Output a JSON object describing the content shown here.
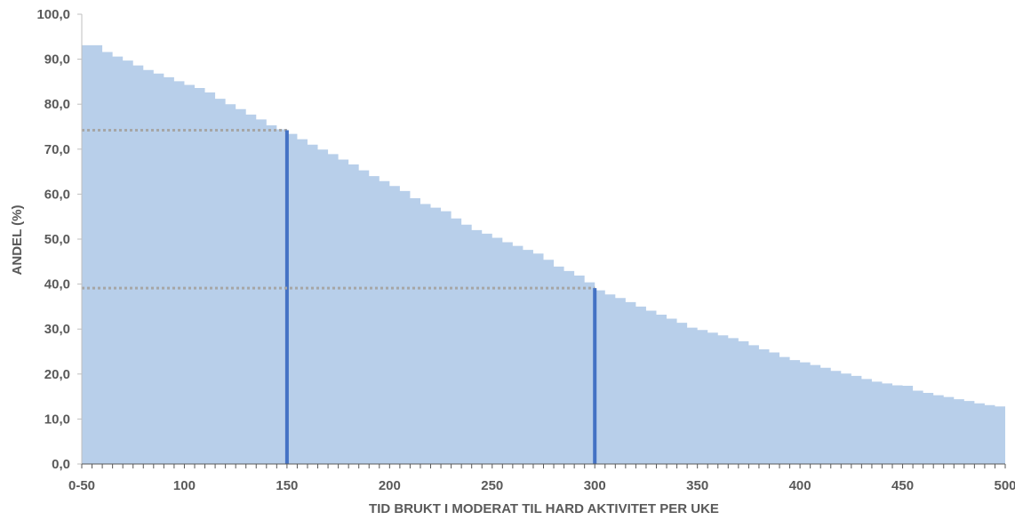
{
  "chart_data": {
    "type": "area",
    "title": "",
    "xlabel": "TID BRUKT I  MODERAT TIL HARD AKTIVITET PER UKE",
    "ylabel": "ANDEL (%)",
    "ylim": [
      0,
      100
    ],
    "yticks": [
      "0,0",
      "10,0",
      "20,0",
      "30,0",
      "40,0",
      "50,0",
      "60,0",
      "70,0",
      "80,0",
      "90,0",
      "100,0"
    ],
    "xlim": [
      50,
      500
    ],
    "xticks": [
      {
        "value": 50,
        "label": "0-50"
      },
      {
        "value": 100,
        "label": "100"
      },
      {
        "value": 150,
        "label": "150"
      },
      {
        "value": 200,
        "label": "200"
      },
      {
        "value": 250,
        "label": "250"
      },
      {
        "value": 300,
        "label": "300"
      },
      {
        "value": 350,
        "label": "350"
      },
      {
        "value": 400,
        "label": "400"
      },
      {
        "value": 450,
        "label": "450"
      },
      {
        "value": 500,
        "label": "500"
      }
    ],
    "fill_color": "#b8cfea",
    "marker_color": "#4472c4",
    "guide_color": "#a6a6a6",
    "grid": false,
    "steps": [
      [
        50,
        93.1
      ],
      [
        60,
        91.6
      ],
      [
        65,
        90.6
      ],
      [
        70,
        89.7
      ],
      [
        75,
        88.6
      ],
      [
        80,
        87.6
      ],
      [
        85,
        86.8
      ],
      [
        90,
        86.0
      ],
      [
        95,
        85.1
      ],
      [
        100,
        84.3
      ],
      [
        105,
        83.6
      ],
      [
        110,
        82.6
      ],
      [
        115,
        81.2
      ],
      [
        120,
        80.0
      ],
      [
        125,
        78.9
      ],
      [
        130,
        77.7
      ],
      [
        135,
        76.6
      ],
      [
        140,
        75.3
      ],
      [
        145,
        74.4
      ],
      [
        150,
        73.4
      ],
      [
        155,
        72.2
      ],
      [
        160,
        71.0
      ],
      [
        165,
        69.9
      ],
      [
        170,
        68.9
      ],
      [
        175,
        67.7
      ],
      [
        180,
        66.6
      ],
      [
        185,
        65.3
      ],
      [
        190,
        64.0
      ],
      [
        195,
        62.9
      ],
      [
        200,
        61.8
      ],
      [
        205,
        60.7
      ],
      [
        210,
        59.1
      ],
      [
        215,
        57.8
      ],
      [
        220,
        57.0
      ],
      [
        225,
        56.2
      ],
      [
        230,
        54.6
      ],
      [
        235,
        53.2
      ],
      [
        240,
        52.0
      ],
      [
        245,
        51.2
      ],
      [
        250,
        50.3
      ],
      [
        255,
        49.3
      ],
      [
        260,
        48.5
      ],
      [
        265,
        47.6
      ],
      [
        270,
        46.8
      ],
      [
        275,
        45.4
      ],
      [
        280,
        43.9
      ],
      [
        285,
        42.9
      ],
      [
        290,
        41.9
      ],
      [
        295,
        40.4
      ],
      [
        300,
        38.6
      ],
      [
        305,
        37.7
      ],
      [
        310,
        36.9
      ],
      [
        315,
        36.0
      ],
      [
        320,
        35.0
      ],
      [
        325,
        34.1
      ],
      [
        330,
        33.2
      ],
      [
        335,
        32.3
      ],
      [
        340,
        31.4
      ],
      [
        345,
        30.3
      ],
      [
        350,
        29.8
      ],
      [
        355,
        29.2
      ],
      [
        360,
        28.6
      ],
      [
        365,
        28.0
      ],
      [
        370,
        27.3
      ],
      [
        375,
        26.4
      ],
      [
        380,
        25.5
      ],
      [
        385,
        24.8
      ],
      [
        390,
        23.8
      ],
      [
        395,
        23.1
      ],
      [
        400,
        22.6
      ],
      [
        405,
        22.0
      ],
      [
        410,
        21.4
      ],
      [
        415,
        20.7
      ],
      [
        420,
        20.1
      ],
      [
        425,
        19.6
      ],
      [
        430,
        18.9
      ],
      [
        435,
        18.3
      ],
      [
        440,
        17.9
      ],
      [
        445,
        17.5
      ],
      [
        450,
        17.4
      ],
      [
        455,
        16.3
      ],
      [
        460,
        15.8
      ],
      [
        465,
        15.3
      ],
      [
        470,
        14.9
      ],
      [
        475,
        14.4
      ],
      [
        480,
        14.0
      ],
      [
        485,
        13.5
      ],
      [
        490,
        13.1
      ],
      [
        495,
        12.8
      ]
    ],
    "markers": [
      {
        "x": 150,
        "y": 74.2
      },
      {
        "x": 300,
        "y": 39.1
      }
    ]
  }
}
